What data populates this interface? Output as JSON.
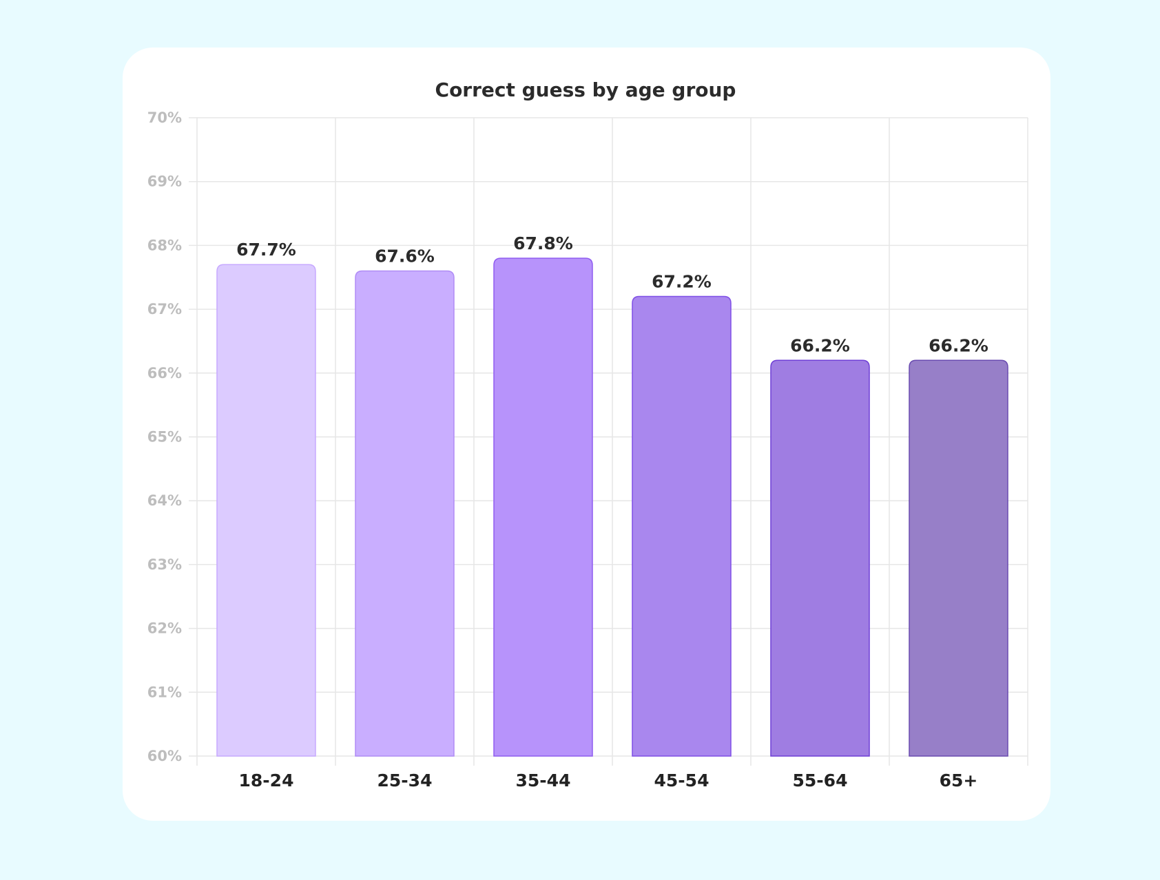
{
  "chart_data": {
    "type": "bar",
    "title": "Correct guess by age group",
    "categories": [
      "18-24",
      "25-34",
      "35-44",
      "45-54",
      "55-64",
      "65+"
    ],
    "values": [
      67.7,
      67.6,
      67.8,
      67.2,
      66.2,
      66.2
    ],
    "data_labels": [
      "67.7%",
      "67.6%",
      "67.8%",
      "67.2%",
      "66.2%",
      "66.2%"
    ],
    "ylim": [
      60,
      70
    ],
    "yticks": [
      "60%",
      "61%",
      "62%",
      "63%",
      "64%",
      "65%",
      "66%",
      "67%",
      "68%",
      "69%",
      "70%"
    ],
    "xlabel": "",
    "ylabel": "",
    "grid": true,
    "bar_colors": [
      "#dccbff",
      "#c9aeff",
      "#b793fb",
      "#a987ee",
      "#9f7de2",
      "#977fc8"
    ],
    "bar_strokes": [
      "#c7a9ff",
      "#b08cf6",
      "#8f5cf0",
      "#7f4fe6",
      "#6f3fd6",
      "#6a4bb0"
    ]
  }
}
